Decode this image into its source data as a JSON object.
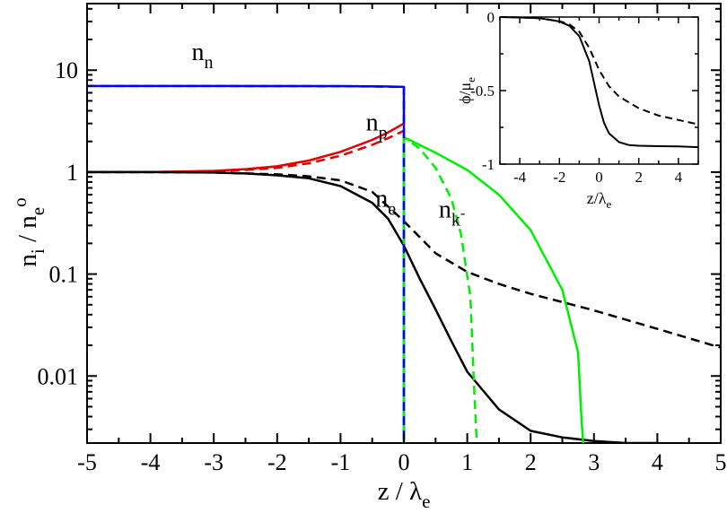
{
  "chart_data": [
    {
      "type": "line",
      "xlabel": {
        "main": "z / λ",
        "sub": "e"
      },
      "ylabel": {
        "parts": [
          {
            "t": "n"
          },
          {
            "t": "i",
            "sub": true
          },
          {
            "t": " / n"
          },
          {
            "t": "e",
            "sub": true
          },
          {
            "t": "o",
            "sup": true
          }
        ]
      },
      "xlim": [
        -5,
        5
      ],
      "ylim": [
        0.0022,
        45
      ],
      "yscale": "log",
      "grid": false,
      "x_ticks": [
        -5,
        -4,
        -3,
        -2,
        -1,
        0,
        1,
        2,
        3,
        4,
        5
      ],
      "y_ticks": [
        {
          "value": 0.01,
          "label": "0.01"
        },
        {
          "value": 0.1,
          "label": "0.1"
        },
        {
          "value": 1,
          "label": "1"
        },
        {
          "value": 10,
          "label": "10"
        }
      ],
      "series": [
        {
          "label": {
            "main": "n",
            "sub": "n"
          },
          "label_at": {
            "x": -3.35,
            "y": 12.5
          },
          "color": "#0000ff",
          "dash": "solid",
          "x": [
            -5,
            -3,
            -1,
            -0.3,
            0,
            0,
            0
          ],
          "y": [
            7.0,
            7.0,
            6.98,
            6.93,
            6.85,
            0.05,
            0.0022
          ]
        },
        {
          "label": {
            "main": "n",
            "sub": "p"
          },
          "label_at": {
            "x": -0.6,
            "y": 2.55
          },
          "color": "#e00000",
          "dash": "solid",
          "x": [
            -5,
            -4,
            -3,
            -2.5,
            -2,
            -1.5,
            -1,
            -0.5,
            -0.25,
            0
          ],
          "y": [
            1.0,
            1.0,
            1.03,
            1.07,
            1.14,
            1.3,
            1.58,
            2.07,
            2.45,
            3.0
          ]
        },
        {
          "color": "#e00000",
          "dash": "dashed",
          "x": [
            -5,
            -4,
            -3,
            -2.5,
            -2,
            -1.5,
            -1,
            -0.5,
            -0.25,
            0
          ],
          "y": [
            1.0,
            1.0,
            1.02,
            1.05,
            1.1,
            1.22,
            1.45,
            1.85,
            2.15,
            2.55
          ]
        },
        {
          "label": {
            "main": "n",
            "sub": "e"
          },
          "label_at": {
            "x": -0.45,
            "y": 0.46
          },
          "color": "#000000",
          "dash": "solid",
          "x": [
            -5,
            -4,
            -3,
            -2.5,
            -2,
            -1.5,
            -1,
            -0.5,
            -0.25,
            0,
            0.25,
            0.5,
            0.75,
            1,
            1.5,
            2,
            2.5,
            3,
            3.5,
            4
          ],
          "y": [
            1.0,
            1.0,
            0.99,
            0.97,
            0.93,
            0.87,
            0.73,
            0.5,
            0.35,
            0.19,
            0.09,
            0.045,
            0.022,
            0.011,
            0.0047,
            0.0029,
            0.0025,
            0.0023,
            0.0021,
            0.002
          ]
        },
        {
          "color": "#000000",
          "dash": "dashed",
          "x": [
            -5,
            -4,
            -3,
            -2,
            -1.5,
            -1,
            -0.5,
            0,
            0.25,
            0.5,
            1,
            1.5,
            2,
            3,
            4,
            5
          ],
          "y": [
            1.0,
            1.0,
            0.99,
            0.95,
            0.91,
            0.83,
            0.64,
            0.33,
            0.23,
            0.16,
            0.105,
            0.08,
            0.064,
            0.044,
            0.029,
            0.019
          ]
        },
        {
          "label": {
            "main": "n",
            "sub": "k",
            "subsup": "-"
          },
          "label_at": {
            "x": 0.55,
            "y": 0.36
          },
          "color": "#00ee00",
          "dash": "solid",
          "x": [
            0,
            0,
            0,
            0.5,
            1,
            1.5,
            2,
            2.5,
            2.75,
            2.8,
            2.83
          ],
          "y": [
            0.0022,
            0.5,
            2.2,
            1.55,
            1.05,
            0.6,
            0.27,
            0.07,
            0.017,
            0.004,
            0.0022
          ]
        },
        {
          "color": "#00ee00",
          "dash": "dashed",
          "x": [
            0,
            0,
            0,
            0.25,
            0.5,
            0.75,
            0.9,
            1.05,
            1.1,
            1.15
          ],
          "y": [
            0.0022,
            0.5,
            2.2,
            1.7,
            1.1,
            0.55,
            0.25,
            0.06,
            0.01,
            0.0022
          ]
        },
        {
          "color": "#0000ff",
          "dash": "dashed",
          "x": [
            -5,
            -3,
            -1,
            -0.3,
            0,
            0,
            0
          ],
          "y": [
            7.0,
            7.0,
            6.96,
            6.9,
            6.82,
            0.05,
            0.0022
          ]
        }
      ]
    },
    {
      "type": "line",
      "xlabel": {
        "main": "z/λ",
        "sub": "e"
      },
      "ylabel": {
        "main": "ϕ/μ",
        "sub": "e"
      },
      "xlim": [
        -5,
        5
      ],
      "ylim": [
        -1,
        0
      ],
      "grid": false,
      "x_ticks": [
        -4,
        -2,
        0,
        2,
        4
      ],
      "y_ticks": [
        {
          "value": 0,
          "label": "0"
        },
        {
          "value": -0.5,
          "label": "-0.5"
        },
        {
          "value": -1,
          "label": "-1"
        }
      ],
      "series": [
        {
          "color": "#000000",
          "dash": "solid",
          "x": [
            -5,
            -4,
            -3,
            -2,
            -1.5,
            -1,
            -0.5,
            -0.25,
            0,
            0.25,
            0.5,
            1,
            1.5,
            2,
            3,
            4,
            5
          ],
          "y": [
            0,
            -0.003,
            -0.008,
            -0.03,
            -0.06,
            -0.13,
            -0.3,
            -0.45,
            -0.6,
            -0.72,
            -0.79,
            -0.85,
            -0.87,
            -0.875,
            -0.878,
            -0.88,
            -0.885
          ]
        },
        {
          "color": "#000000",
          "dash": "dashed",
          "x": [
            -5,
            -4,
            -3,
            -2,
            -1.5,
            -1,
            -0.5,
            0,
            0.5,
            1,
            1.5,
            2,
            3,
            4,
            5
          ],
          "y": [
            0,
            -0.003,
            -0.008,
            -0.028,
            -0.05,
            -0.1,
            -0.21,
            -0.36,
            -0.47,
            -0.54,
            -0.58,
            -0.62,
            -0.67,
            -0.7,
            -0.73
          ]
        }
      ]
    }
  ]
}
